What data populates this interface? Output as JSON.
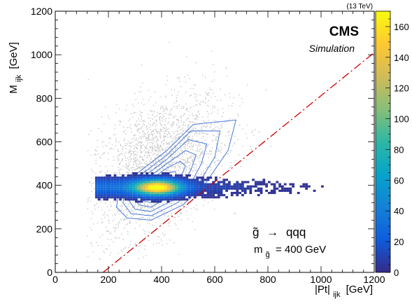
{
  "header": {
    "energy": "(13 TeV)"
  },
  "labels": {
    "cms": "CMS",
    "simulation": "Simulation",
    "process_lhs": "g̃",
    "process_arrow": "→",
    "process_rhs": "qqq",
    "mass_m": "m",
    "mass_sub": "g̃",
    "mass_value": "= 400 GeV"
  },
  "colors": {
    "background_scatter": "#c8c8c8",
    "contour": "#3a6fd6",
    "cut_line": "#cc0000",
    "colormap": [
      "#352a87",
      "#0f5cdd",
      "#1481d6",
      "#06a4ca",
      "#2eb7a4",
      "#87bf77",
      "#d1bb59",
      "#fec832",
      "#f9fb0e"
    ]
  },
  "chart_data": {
    "type": "heatmap",
    "xlabel_main": "|Pt|",
    "xlabel_sub": "ijk",
    "xlabel_unit": "[GeV]",
    "ylabel_main": "M",
    "ylabel_sub": "ijk",
    "ylabel_unit": "[GeV]",
    "xlim": [
      0,
      1200
    ],
    "ylim": [
      0,
      1200
    ],
    "x_ticks": [
      0,
      200,
      400,
      600,
      800,
      1000,
      1200
    ],
    "y_ticks": [
      0,
      200,
      400,
      600,
      800,
      1000,
      1200
    ],
    "z_range": [
      0,
      170
    ],
    "z_ticks": [
      0,
      20,
      40,
      60,
      80,
      100,
      120,
      140,
      160
    ],
    "peak": {
      "x": 380,
      "y": 385
    },
    "diagonal_cut": {
      "x1": 180,
      "y1": 0,
      "x2": 1200,
      "y2": 1010
    },
    "contours": [
      [
        [
          260,
          410
        ],
        [
          420,
          560
        ],
        [
          520,
          680
        ],
        [
          680,
          700
        ],
        [
          650,
          560
        ],
        [
          560,
          400
        ],
        [
          480,
          310
        ],
        [
          360,
          240
        ],
        [
          270,
          250
        ],
        [
          230,
          300
        ],
        [
          240,
          370
        ]
      ],
      [
        [
          275,
          405
        ],
        [
          420,
          540
        ],
        [
          510,
          650
        ],
        [
          620,
          650
        ],
        [
          600,
          530
        ],
        [
          530,
          390
        ],
        [
          460,
          320
        ],
        [
          360,
          260
        ],
        [
          285,
          270
        ],
        [
          255,
          320
        ],
        [
          260,
          375
        ]
      ],
      [
        [
          290,
          400
        ],
        [
          420,
          520
        ],
        [
          500,
          610
        ],
        [
          570,
          590
        ],
        [
          550,
          500
        ],
        [
          500,
          385
        ],
        [
          440,
          330
        ],
        [
          360,
          280
        ],
        [
          300,
          290
        ],
        [
          275,
          335
        ],
        [
          280,
          370
        ]
      ],
      [
        [
          305,
          395
        ],
        [
          420,
          500
        ],
        [
          490,
          560
        ],
        [
          530,
          540
        ],
        [
          510,
          470
        ],
        [
          470,
          380
        ],
        [
          420,
          340
        ],
        [
          360,
          300
        ],
        [
          315,
          310
        ],
        [
          295,
          345
        ],
        [
          300,
          370
        ]
      ],
      [
        [
          320,
          392
        ],
        [
          420,
          480
        ],
        [
          470,
          510
        ],
        [
          490,
          490
        ],
        [
          470,
          430
        ],
        [
          440,
          380
        ],
        [
          400,
          350
        ],
        [
          360,
          320
        ],
        [
          330,
          330
        ],
        [
          315,
          355
        ],
        [
          315,
          375
        ]
      ],
      [
        [
          335,
          390
        ],
        [
          410,
          450
        ],
        [
          450,
          465
        ],
        [
          460,
          440
        ],
        [
          440,
          400
        ],
        [
          400,
          370
        ],
        [
          360,
          345
        ],
        [
          340,
          350
        ],
        [
          330,
          370
        ]
      ]
    ]
  }
}
